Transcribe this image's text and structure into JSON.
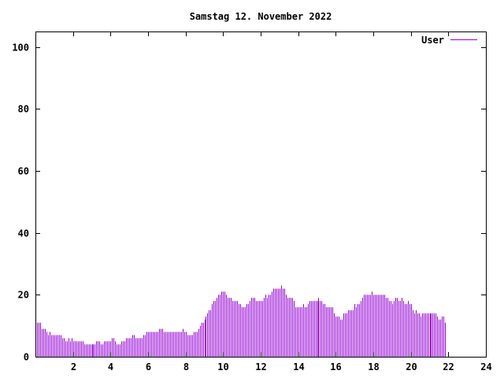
{
  "chart_data": {
    "type": "bar",
    "title": "Samstag 12. November 2022",
    "xlabel": "",
    "ylabel": "",
    "xlim": [
      0,
      24
    ],
    "ylim": [
      0,
      105
    ],
    "x_ticks": [
      2,
      4,
      6,
      8,
      10,
      12,
      14,
      16,
      18,
      20,
      22,
      24
    ],
    "y_ticks": [
      0,
      20,
      40,
      60,
      80,
      100
    ],
    "grid": false,
    "legend_position": "top-right",
    "series": [
      {
        "name": "User",
        "color": "#9400d3",
        "interval_minutes": 5,
        "values": [
          11,
          11,
          11,
          11,
          9,
          9,
          9,
          8,
          7,
          8,
          7,
          7,
          7,
          7,
          7,
          7,
          7,
          6,
          6,
          5,
          5,
          6,
          5,
          6,
          5,
          5,
          5,
          5,
          5,
          5,
          5,
          4,
          4,
          4,
          4,
          4,
          4,
          4,
          4,
          5,
          5,
          5,
          4,
          4,
          5,
          5,
          5,
          5,
          5,
          6,
          6,
          5,
          4,
          4,
          4,
          5,
          5,
          5,
          6,
          6,
          6,
          6,
          7,
          7,
          6,
          6,
          6,
          6,
          6,
          7,
          7,
          8,
          8,
          8,
          8,
          8,
          8,
          8,
          8,
          9,
          9,
          9,
          8,
          8,
          8,
          8,
          8,
          8,
          8,
          8,
          8,
          8,
          8,
          8,
          9,
          8,
          8,
          7,
          7,
          7,
          7,
          8,
          8,
          8,
          9,
          10,
          11,
          11,
          12,
          13,
          14,
          15,
          15,
          17,
          18,
          18,
          19,
          20,
          20,
          21,
          21,
          21,
          20,
          19,
          19,
          19,
          18,
          18,
          18,
          18,
          17,
          17,
          16,
          16,
          16,
          17,
          17,
          18,
          19,
          19,
          19,
          18,
          18,
          18,
          18,
          18,
          19,
          20,
          19,
          20,
          20,
          21,
          22,
          22,
          22,
          22,
          22,
          23,
          22,
          22,
          20,
          19,
          19,
          19,
          19,
          18,
          16,
          16,
          16,
          16,
          16,
          17,
          16,
          16,
          17,
          18,
          18,
          18,
          18,
          18,
          18,
          19,
          18,
          18,
          17,
          17,
          16,
          16,
          16,
          16,
          16,
          14,
          13,
          13,
          13,
          12,
          12,
          14,
          14,
          14,
          15,
          15,
          15,
          15,
          17,
          16,
          17,
          17,
          18,
          19,
          20,
          20,
          20,
          20,
          20,
          21,
          20,
          20,
          20,
          20,
          20,
          20,
          20,
          20,
          19,
          19,
          18,
          18,
          17,
          18,
          19,
          19,
          18,
          18,
          19,
          18,
          17,
          17,
          18,
          17,
          17,
          15,
          14,
          15,
          14,
          14,
          13,
          14,
          14,
          14,
          14,
          14,
          14,
          14,
          14,
          14,
          14,
          13,
          12,
          12,
          13,
          13,
          11
        ]
      }
    ]
  }
}
